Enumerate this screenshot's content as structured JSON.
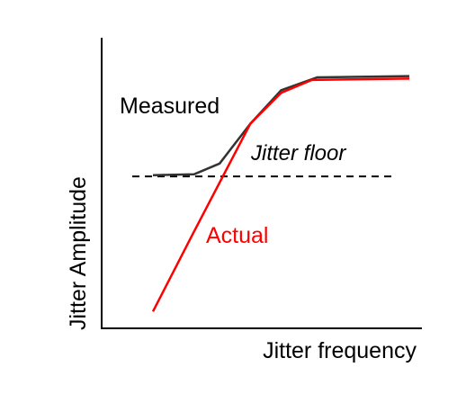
{
  "chart_data": {
    "type": "line",
    "title": "",
    "xlabel": "Jitter frequency",
    "ylabel": "Jitter Amplitude",
    "xlim": [
      0,
      100
    ],
    "ylim": [
      0,
      100
    ],
    "grid": false,
    "legend": "none",
    "series": [
      {
        "name": "Measured",
        "color": "#333333",
        "x": [
          0,
          16,
          26,
          38,
          50,
          64,
          100
        ],
        "y": [
          55,
          55.3,
          59.5,
          75,
          88,
          93,
          93.5
        ]
      },
      {
        "name": "Actual",
        "color": "#ff0000",
        "x": [
          0,
          16,
          38,
          50,
          62,
          100
        ],
        "y": [
          2,
          33,
          75,
          87,
          92,
          92.5
        ]
      }
    ],
    "reference_lines": [
      {
        "label": "Jitter floor",
        "y": 54.5,
        "style": "dashed",
        "color": "#000000"
      }
    ]
  }
}
